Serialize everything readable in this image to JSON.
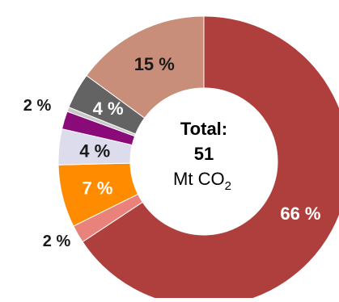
{
  "chart_data": {
    "type": "pie",
    "variant": "donut",
    "title": "",
    "legend": "none",
    "slices": [
      {
        "value": 66,
        "label": "66 %",
        "color": "#ae3f3c",
        "label_position": "inside",
        "label_color": "#ffffff"
      },
      {
        "value": 2,
        "label": "2 %",
        "color": "#e8827a",
        "label_position": "outside",
        "label_color": "#1a1a1a"
      },
      {
        "value": 7,
        "label": "7 %",
        "color": "#ff8c00",
        "label_position": "inside",
        "label_color": "#ffffff"
      },
      {
        "value": 4,
        "label": "4 %",
        "color": "#dcdcec",
        "label_position": "inside",
        "label_color": "#1a1a1a"
      },
      {
        "value": 2,
        "label": "2 %",
        "color": "#8b0a7a",
        "label_position": "outside",
        "label_color": "#1a1a1a"
      },
      {
        "value": 0.5,
        "label": "",
        "color": "#c8c8c8",
        "label_position": "none",
        "label_color": "#1a1a1a"
      },
      {
        "value": 4,
        "label": "4 %",
        "color": "#636363",
        "label_position": "inside",
        "label_color": "#ffffff"
      },
      {
        "value": 15,
        "label": "15 %",
        "color": "#c88e7a",
        "label_position": "inside",
        "label_color": "#1a1a1a"
      }
    ],
    "center": {
      "title": "Total:",
      "value": "51",
      "unit_prefix": "Mt CO",
      "unit_subscript": "2"
    }
  }
}
